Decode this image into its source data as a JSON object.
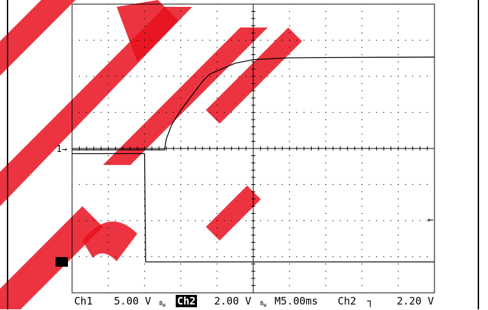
{
  "scope": {
    "colors": {
      "trace": "#000000",
      "grid": "#000000",
      "background": "#ffffff",
      "watermark": "#e8101e",
      "bezel": "#000000"
    },
    "divisions": {
      "horizontal": 10,
      "vertical": 8
    },
    "markers": {
      "ch1": "1→",
      "ch2": "2→",
      "trigger_level": "←"
    },
    "status": {
      "ch1_label": "Ch1",
      "ch1_scale": "5.00 V",
      "bw1_icon": "bandwidth-limit-icon",
      "ch2_label": "Ch2",
      "ch2_scale": "2.00 V",
      "bw2_icon": "bandwidth-limit-icon",
      "timebase": "M5.00ms",
      "trig_source": "Ch2",
      "trig_slope": "┐",
      "trig_slope_icon": "falling-edge-icon",
      "trig_level": "2.20 V"
    },
    "traces": {
      "ch1": {
        "name": "",
        "points_div": [
          [
            0,
            0
          ],
          [
            2.55,
            0
          ],
          [
            2.6,
            0.3
          ],
          [
            2.75,
            0.7
          ],
          [
            3.0,
            1.1
          ],
          [
            3.3,
            1.5
          ],
          [
            3.6,
            1.9
          ],
          [
            3.8,
            2.1
          ],
          [
            4.5,
            2.4
          ],
          [
            5.0,
            2.5
          ],
          [
            6.0,
            2.55
          ],
          [
            7.0,
            2.56
          ],
          [
            10.0,
            2.57
          ]
        ]
      },
      "ch2": {
        "name": "",
        "points_div": [
          [
            0,
            3.0
          ],
          [
            2.0,
            3.0
          ],
          [
            2.03,
            0
          ],
          [
            10.0,
            0
          ]
        ]
      }
    }
  }
}
